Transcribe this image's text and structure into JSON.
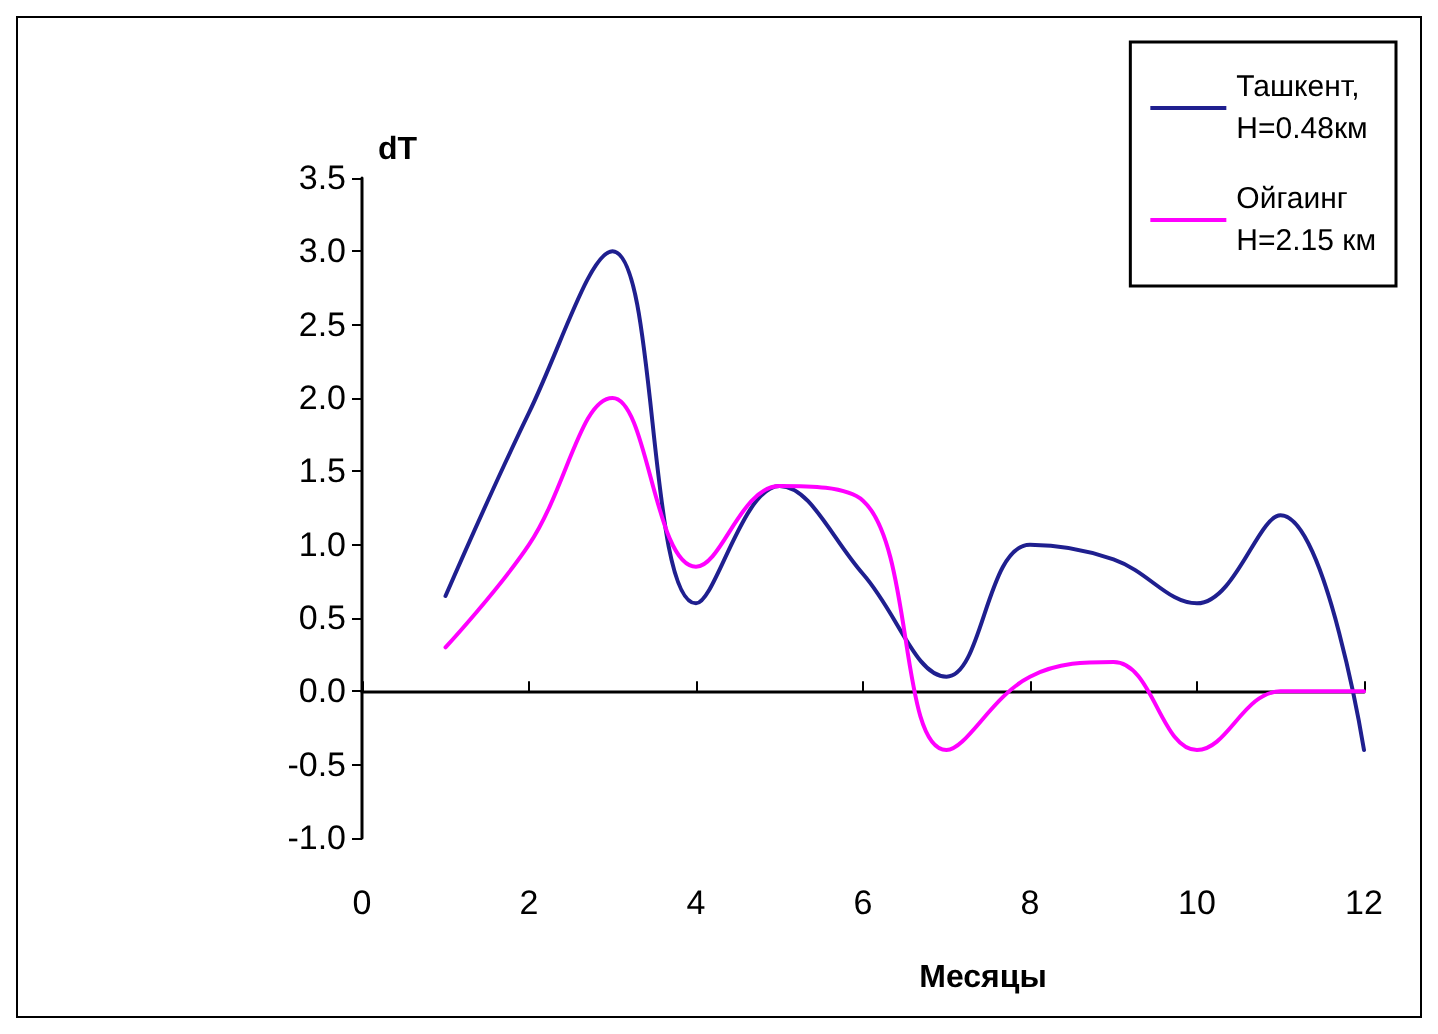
{
  "chart_data": {
    "type": "line",
    "xlabel": "Месяцы",
    "ylabel": "dT",
    "x": [
      1,
      2,
      3,
      4,
      5,
      6,
      7,
      8,
      9,
      10,
      11,
      12
    ],
    "series": [
      {
        "name": "Ташкент,\nH=0.48км",
        "color": "#1f1f8f",
        "values": [
          0.65,
          1.9,
          3.0,
          0.6,
          1.4,
          0.8,
          0.1,
          1.0,
          0.9,
          0.6,
          1.2,
          -0.4
        ]
      },
      {
        "name": "Ойгаинг\nH=2.15 км",
        "color": "#ff00ff",
        "values": [
          0.3,
          1.0,
          2.0,
          0.85,
          1.4,
          1.3,
          -0.4,
          0.1,
          0.2,
          -0.4,
          0.0,
          0.0
        ]
      }
    ],
    "xlim": [
      0,
      12
    ],
    "xticks": [
      0,
      2,
      4,
      6,
      8,
      10,
      12
    ],
    "ylim": [
      -1,
      3.5
    ],
    "yticks": [
      {
        "value": -1,
        "label": "-1.0"
      },
      {
        "value": -0.5,
        "label": "-0.5"
      },
      {
        "value": 0,
        "label": "0.0"
      },
      {
        "value": 0.5,
        "label": "0.5"
      },
      {
        "value": 1,
        "label": "1.0"
      },
      {
        "value": 1.5,
        "label": "1.5"
      },
      {
        "value": 2,
        "label": "2.0"
      },
      {
        "value": 2.5,
        "label": "2.5"
      },
      {
        "value": 3,
        "label": "3.0"
      },
      {
        "value": 3.5,
        "label": "3.5"
      }
    ],
    "legend": "top right",
    "marker": "none",
    "line_style": "solid"
  }
}
